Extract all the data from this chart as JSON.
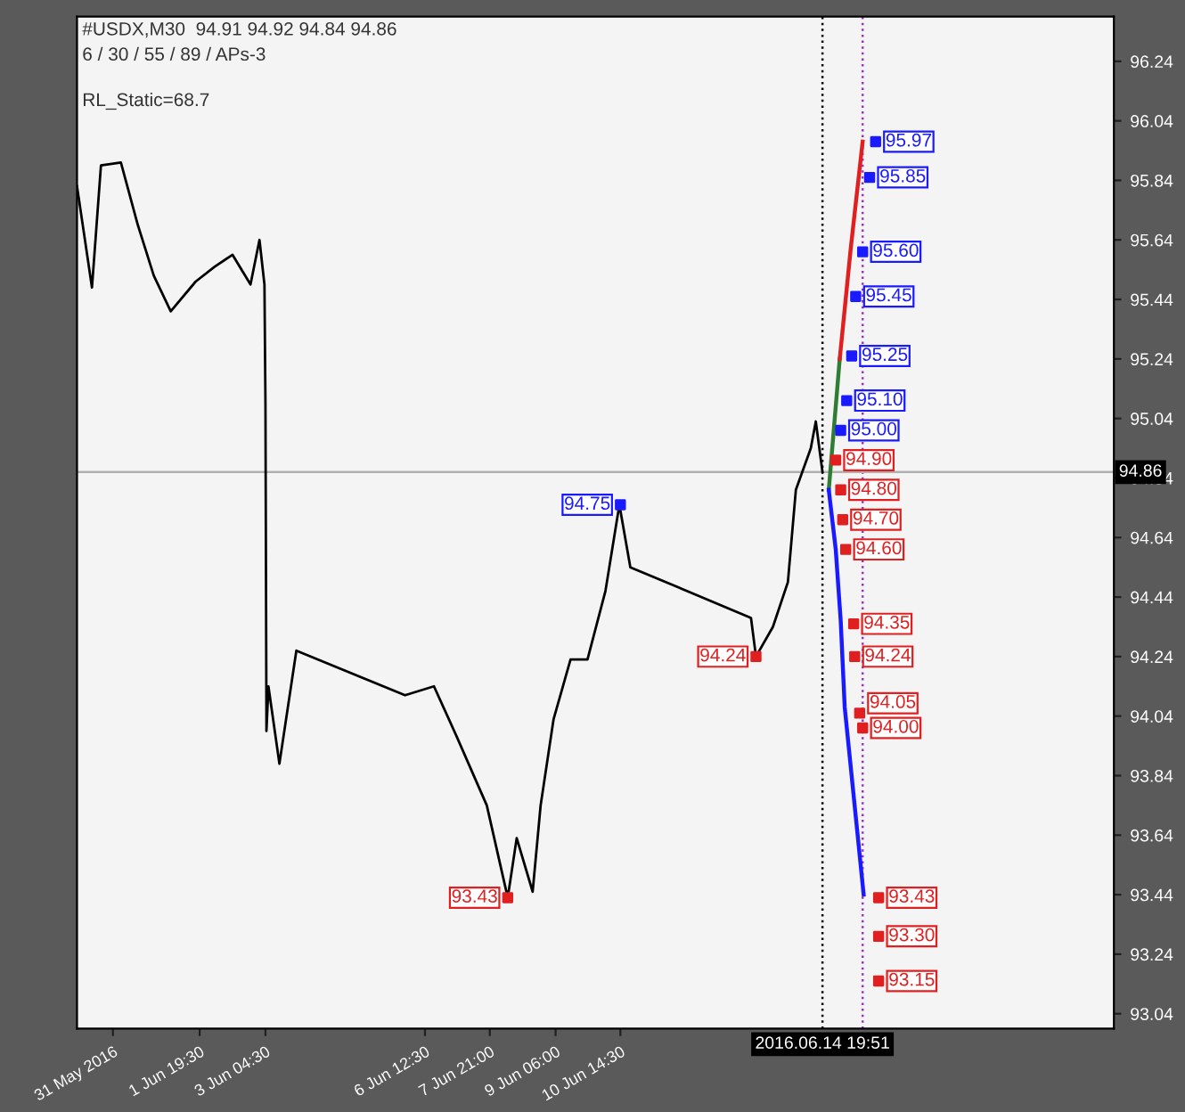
{
  "chart_data": {
    "type": "line",
    "title": "#USDX,M30  94.91 94.92 94.84 94.86",
    "subtitle": "6 / 30 / 55 / 89 / APs-3",
    "annotations": [
      "RL_Static=68.7"
    ],
    "xlim": [
      "2016-05-30T06:00",
      "2016-06-20T22:00"
    ],
    "xticks": [
      {
        "value": "2016-05-31T00:00",
        "label": "31 May 2016"
      },
      {
        "value": "2016-06-01T19:30",
        "label": "1 Jun 19:30"
      },
      {
        "value": "2016-06-03T04:30",
        "label": "3 Jun 04:30"
      },
      {
        "value": "2016-06-06T12:30",
        "label": "6 Jun 12:30"
      },
      {
        "value": "2016-06-07T21:00",
        "label": "7 Jun 21:00"
      },
      {
        "value": "2016-06-09T06:00",
        "label": "9 Jun 06:00"
      },
      {
        "value": "2016-06-10T14:30",
        "label": "10 Jun 14:30"
      }
    ],
    "ylim": [
      92.99,
      96.39
    ],
    "yticks": [
      93.04,
      93.24,
      93.44,
      93.64,
      93.84,
      94.04,
      94.24,
      94.44,
      94.64,
      94.84,
      95.04,
      95.24,
      95.44,
      95.64,
      95.84,
      96.04,
      96.24
    ],
    "grid": false,
    "legend": false,
    "series": [
      {
        "color": "#000000",
        "x": [
          "2016-05-30T06:00",
          "2016-05-30T13:30",
          "2016-05-30T18:00",
          "2016-05-31T04:00",
          "2016-05-31T12:30",
          "2016-05-31T20:30",
          "2016-06-01T05:00",
          "2016-06-01T17:30",
          "2016-06-02T03:00",
          "2016-06-02T12:00",
          "2016-06-02T21:00",
          "2016-06-03T01:30",
          "2016-06-03T04:00",
          "2016-06-03T04:30",
          "2016-06-03T05:00",
          "2016-06-03T06:00",
          "2016-06-03T11:30",
          "2016-06-03T20:00",
          "2016-06-06T02:30",
          "2016-06-06T17:00",
          "2016-06-07T04:30",
          "2016-06-07T19:30",
          "2016-06-08T06:00",
          "2016-06-08T10:30",
          "2016-06-08T18:30",
          "2016-06-08T22:30",
          "2016-06-09T05:00",
          "2016-06-09T13:30",
          "2016-06-09T22:00",
          "2016-06-10T07:00",
          "2016-06-10T14:00",
          "2016-06-10T19:30",
          "2016-06-13T08:00",
          "2016-06-13T10:30",
          "2016-06-13T19:00",
          "2016-06-14T02:30",
          "2016-06-14T06:30",
          "2016-06-14T14:00",
          "2016-06-14T16:30",
          "2016-06-14T19:51"
        ],
        "values": [
          95.82,
          95.48,
          95.89,
          95.9,
          95.69,
          95.52,
          95.4,
          95.5,
          95.55,
          95.59,
          95.49,
          95.64,
          95.49,
          95.09,
          93.99,
          94.14,
          93.88,
          94.26,
          94.11,
          94.14,
          93.97,
          93.74,
          93.43,
          93.63,
          93.45,
          93.74,
          94.03,
          94.23,
          94.23,
          94.46,
          94.75,
          94.54,
          94.37,
          94.24,
          94.34,
          94.49,
          94.8,
          94.94,
          95.03,
          94.86
        ]
      },
      {
        "type": "line",
        "color": "#2e7d32",
        "x": [
          "2016-06-14T23:00",
          "2016-06-15T04:30"
        ],
        "values": [
          94.8,
          95.24
        ]
      },
      {
        "type": "line",
        "color": "#e02020",
        "x": [
          "2016-06-15T04:30",
          "2016-06-15T10:00",
          "2016-06-15T16:00"
        ],
        "values": [
          95.24,
          95.61,
          95.97
        ]
      },
      {
        "type": "line",
        "color": "#1a1aff",
        "x": [
          "2016-06-14T23:00",
          "2016-06-15T02:30",
          "2016-06-15T05:00",
          "2016-06-15T07:00",
          "2016-06-15T16:30"
        ],
        "values": [
          94.8,
          94.6,
          94.36,
          94.07,
          93.44
        ]
      },
      {
        "type": "scatter",
        "marker": "square",
        "color": "#1a1aff",
        "x": [
          "2016-06-15T22:30",
          "2016-06-15T19:30",
          "2016-06-15T16:00",
          "2016-06-15T12:30",
          "2016-06-15T10:30",
          "2016-06-15T08:00",
          "2016-06-15T05:00",
          "2016-06-10T14:30"
        ],
        "values": [
          95.97,
          95.85,
          95.6,
          95.45,
          95.25,
          95.1,
          95.0,
          94.75
        ],
        "value_labels": [
          "95.97",
          "95.85",
          "95.60",
          "95.45",
          "95.25",
          "95.10",
          "95.00",
          "94.75"
        ]
      },
      {
        "type": "scatter",
        "marker": "square",
        "color": "#e02020",
        "x": [
          "2016-06-15T02:30",
          "2016-06-15T05:00",
          "2016-06-15T06:00",
          "2016-06-15T07:30",
          "2016-06-15T11:30",
          "2016-06-15T12:00",
          "2016-06-15T14:30",
          "2016-06-15T16:00",
          "2016-06-16T00:00",
          "2016-06-16T00:00",
          "2016-06-16T00:00",
          "2016-06-13T10:30",
          "2016-06-08T06:00"
        ],
        "values": [
          94.9,
          94.8,
          94.7,
          94.6,
          94.35,
          94.24,
          94.05,
          94.0,
          93.43,
          93.3,
          93.15,
          94.24,
          93.43
        ],
        "value_labels": [
          "94.90",
          "94.80",
          "94.70",
          "94.60",
          "94.35",
          "94.24",
          "94.05",
          "94.00",
          "93.43",
          "93.30",
          "93.15",
          "94.24",
          "93.43"
        ]
      }
    ],
    "ref_lines": [
      {
        "axis": "x",
        "value": "2016-06-14T19:51",
        "label": "2016.06.14 19:51",
        "color": "#000000",
        "line_style": "dotted"
      },
      {
        "axis": "x",
        "value": "2016-06-15T16:00",
        "color": "#9b30d0",
        "line_style": "dotted"
      },
      {
        "axis": "y",
        "value": 94.86,
        "label": "94.86",
        "color": "#b0b0b0",
        "line_style": "solid"
      }
    ]
  }
}
